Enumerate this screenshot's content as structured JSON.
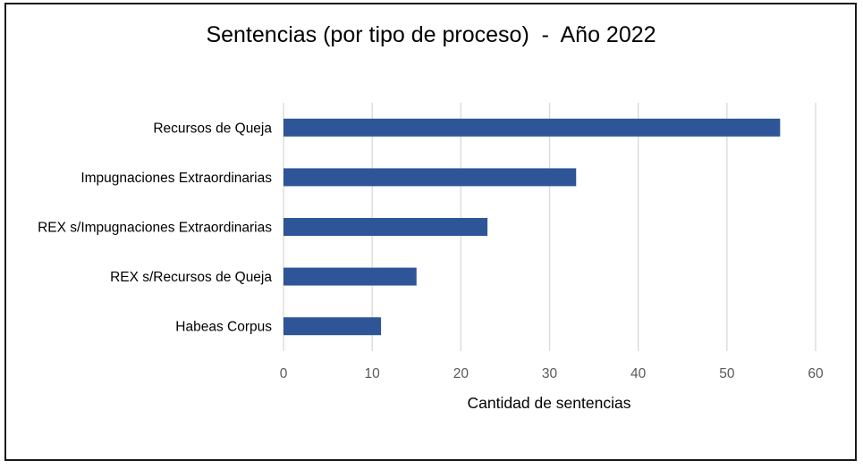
{
  "chart_data": {
    "type": "bar",
    "orientation": "horizontal",
    "title": "Sentencias (por tipo de proceso)  -  Año 2022",
    "xlabel": "Cantidad de sentencias",
    "ylabel": "",
    "categories": [
      "Recursos de Queja",
      "Impugnaciones Extraordinarias",
      "REX s/Impugnaciones Extraordinarias",
      "REX s/Recursos de Queja",
      "Habeas Corpus"
    ],
    "values": [
      56,
      33,
      23,
      15,
      11
    ],
    "xlim": [
      0,
      60
    ],
    "xticks": [
      0,
      10,
      20,
      30,
      40,
      50,
      60
    ],
    "grid": true,
    "legend": "none",
    "bar_color": "#2e5597",
    "grid_color": "#d9d9d9"
  }
}
